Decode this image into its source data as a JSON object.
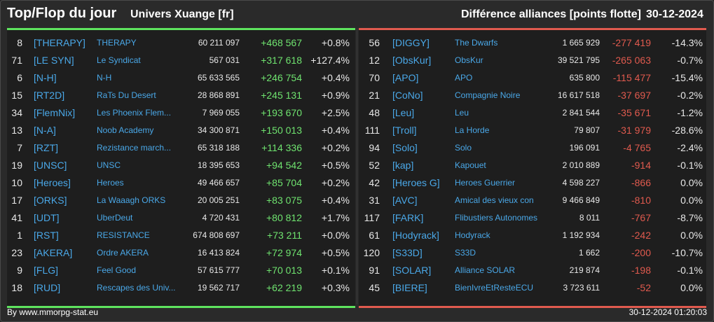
{
  "header": {
    "title": "Top/Flop du jour",
    "universe": "Univers Xuange [fr]",
    "metric": "Différence alliances [points flotte]",
    "date": "30-12-2024"
  },
  "colors": {
    "top_accent": "#5ee35e",
    "flop_accent": "#e05a4e",
    "link": "#4aa8e8"
  },
  "top": [
    {
      "rank": "8",
      "tag": "[THERAPY]",
      "name": "THERAPY",
      "points": "60 211 097",
      "diff": "+468 567",
      "pct": "+0.8%"
    },
    {
      "rank": "71",
      "tag": "[LE SYN]",
      "name": "Le Syndicat",
      "points": "567 031",
      "diff": "+317 618",
      "pct": "+127.4%"
    },
    {
      "rank": "6",
      "tag": "[N-H]",
      "name": "N-H",
      "points": "65 633 565",
      "diff": "+246 754",
      "pct": "+0.4%"
    },
    {
      "rank": "15",
      "tag": "[RT2D]",
      "name": "RaTs Du Desert",
      "points": "28 868 891",
      "diff": "+245 131",
      "pct": "+0.9%"
    },
    {
      "rank": "34",
      "tag": "[FlemNix]",
      "name": "Les Phoenix Flem...",
      "points": "7 969 055",
      "diff": "+193 670",
      "pct": "+2.5%"
    },
    {
      "rank": "13",
      "tag": "[N-A]",
      "name": "Noob Academy",
      "points": "34 300 871",
      "diff": "+150 013",
      "pct": "+0.4%"
    },
    {
      "rank": "7",
      "tag": "[RZT]",
      "name": "Rezistance march...",
      "points": "65 318 188",
      "diff": "+114 336",
      "pct": "+0.2%"
    },
    {
      "rank": "19",
      "tag": "[UNSC]",
      "name": "UNSC",
      "points": "18 395 653",
      "diff": "+94 542",
      "pct": "+0.5%"
    },
    {
      "rank": "10",
      "tag": "[Heroes]",
      "name": "Heroes",
      "points": "49 466 657",
      "diff": "+85 704",
      "pct": "+0.2%"
    },
    {
      "rank": "17",
      "tag": "[ORKS]",
      "name": "La Waaagh ORKS",
      "points": "20 005 251",
      "diff": "+83 075",
      "pct": "+0.4%"
    },
    {
      "rank": "41",
      "tag": "[UDT]",
      "name": "UberDeut",
      "points": "4 720 431",
      "diff": "+80 812",
      "pct": "+1.7%"
    },
    {
      "rank": "1",
      "tag": "[RST]",
      "name": "RESISTANCE",
      "points": "674 808 697",
      "diff": "+73 211",
      "pct": "+0.0%"
    },
    {
      "rank": "23",
      "tag": "[AKERA]",
      "name": "Ordre AKERA",
      "points": "16 413 824",
      "diff": "+72 974",
      "pct": "+0.5%"
    },
    {
      "rank": "9",
      "tag": "[FLG]",
      "name": "Feel Good",
      "points": "57 615 777",
      "diff": "+70 013",
      "pct": "+0.1%"
    },
    {
      "rank": "18",
      "tag": "[RUD]",
      "name": "Rescapes des Univ...",
      "points": "19 562 717",
      "diff": "+62 219",
      "pct": "+0.3%"
    }
  ],
  "flop": [
    {
      "rank": "56",
      "tag": "[DIGGY]",
      "name": "The Dwarfs",
      "points": "1 665 929",
      "diff": "-277 419",
      "pct": "-14.3%"
    },
    {
      "rank": "12",
      "tag": "[ObsKur]",
      "name": "ObsKur",
      "points": "39 521 795",
      "diff": "-265 063",
      "pct": "-0.7%"
    },
    {
      "rank": "70",
      "tag": "[APO]",
      "name": "APO",
      "points": "635 800",
      "diff": "-115 477",
      "pct": "-15.4%"
    },
    {
      "rank": "21",
      "tag": "[CoNo]",
      "name": "Compagnie Noire",
      "points": "16 617 518",
      "diff": "-37 697",
      "pct": "-0.2%"
    },
    {
      "rank": "48",
      "tag": "[Leu]",
      "name": "Leu",
      "points": "2 841 544",
      "diff": "-35 671",
      "pct": "-1.2%"
    },
    {
      "rank": "111",
      "tag": "[Troll]",
      "name": "La Horde",
      "points": "79 807",
      "diff": "-31 979",
      "pct": "-28.6%"
    },
    {
      "rank": "94",
      "tag": "[Solo]",
      "name": "Solo",
      "points": "196 091",
      "diff": "-4 765",
      "pct": "-2.4%"
    },
    {
      "rank": "52",
      "tag": "[kap]",
      "name": "Kapouet",
      "points": "2 010 889",
      "diff": "-914",
      "pct": "-0.1%"
    },
    {
      "rank": "42",
      "tag": "[Heroes G]",
      "name": "Heroes Guerrier",
      "points": "4 598 227",
      "diff": "-866",
      "pct": "0.0%"
    },
    {
      "rank": "31",
      "tag": "[AVC]",
      "name": "Amical des vieux con",
      "points": "9 466 849",
      "diff": "-810",
      "pct": "0.0%"
    },
    {
      "rank": "117",
      "tag": "[FARK]",
      "name": "Flibustiers Autonomes",
      "points": "8 011",
      "diff": "-767",
      "pct": "-8.7%"
    },
    {
      "rank": "61",
      "tag": "[Hodyrack]",
      "name": "Hodyrack",
      "points": "1 192 934",
      "diff": "-242",
      "pct": "0.0%"
    },
    {
      "rank": "120",
      "tag": "[S33D]",
      "name": "S33D",
      "points": "1 662",
      "diff": "-200",
      "pct": "-10.7%"
    },
    {
      "rank": "91",
      "tag": "[SOLAR]",
      "name": "Alliance SOLAR",
      "points": "219 874",
      "diff": "-198",
      "pct": "-0.1%"
    },
    {
      "rank": "45",
      "tag": "[BIERE]",
      "name": "BienIvreEtResteECU",
      "points": "3 723 611",
      "diff": "-52",
      "pct": "0.0%"
    }
  ],
  "footer": {
    "credit": "By www.mmorpg-stat.eu",
    "timestamp": "30-12-2024 01:20:03"
  }
}
